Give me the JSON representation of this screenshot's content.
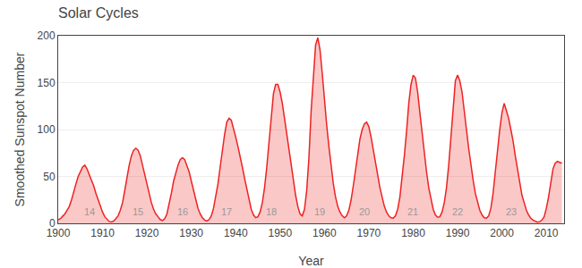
{
  "chart_data": {
    "type": "area",
    "title": "Solar Cycles",
    "xlabel": "Year",
    "ylabel": "Smoothed Sunspot Number",
    "xlim": [
      1900,
      2014
    ],
    "ylim": [
      0,
      200
    ],
    "xticks": [
      1900,
      1910,
      1920,
      1930,
      1940,
      1950,
      1960,
      1970,
      1980,
      1990,
      2000,
      2010
    ],
    "yticks": [
      0,
      50,
      100,
      150,
      200
    ],
    "grid": "y",
    "color": "#EE2222",
    "annotations": [
      {
        "text": "14",
        "x": 1907,
        "y": 5
      },
      {
        "text": "15",
        "x": 1918,
        "y": 5
      },
      {
        "text": "16",
        "x": 1928,
        "y": 5
      },
      {
        "text": "17",
        "x": 1938,
        "y": 5
      },
      {
        "text": "18",
        "x": 1948,
        "y": 5
      },
      {
        "text": "19",
        "x": 1959,
        "y": 5
      },
      {
        "text": "20",
        "x": 1969,
        "y": 5
      },
      {
        "text": "21",
        "x": 1980,
        "y": 5
      },
      {
        "text": "22",
        "x": 1990,
        "y": 5
      },
      {
        "text": "23",
        "x": 2002,
        "y": 5
      }
    ],
    "x": [
      1900.0,
      1900.5,
      1901.0,
      1901.5,
      1902.0,
      1902.5,
      1903.0,
      1903.5,
      1904.0,
      1904.5,
      1905.0,
      1905.5,
      1906.0,
      1906.5,
      1907.0,
      1907.5,
      1908.0,
      1908.5,
      1909.0,
      1909.5,
      1910.0,
      1910.5,
      1911.0,
      1911.5,
      1912.0,
      1912.5,
      1913.0,
      1913.5,
      1914.0,
      1914.5,
      1915.0,
      1915.5,
      1916.0,
      1916.5,
      1917.0,
      1917.5,
      1918.0,
      1918.5,
      1919.0,
      1919.5,
      1920.0,
      1920.5,
      1921.0,
      1921.5,
      1922.0,
      1922.5,
      1923.0,
      1923.5,
      1924.0,
      1924.5,
      1925.0,
      1925.5,
      1926.0,
      1926.5,
      1927.0,
      1927.5,
      1928.0,
      1928.5,
      1929.0,
      1929.5,
      1930.0,
      1930.5,
      1931.0,
      1931.5,
      1932.0,
      1932.5,
      1933.0,
      1933.5,
      1934.0,
      1934.5,
      1935.0,
      1935.5,
      1936.0,
      1936.5,
      1937.0,
      1937.5,
      1938.0,
      1938.5,
      1939.0,
      1939.5,
      1940.0,
      1940.5,
      1941.0,
      1941.5,
      1942.0,
      1942.5,
      1943.0,
      1943.5,
      1944.0,
      1944.5,
      1945.0,
      1945.5,
      1946.0,
      1946.5,
      1947.0,
      1947.5,
      1948.0,
      1948.5,
      1949.0,
      1949.5,
      1950.0,
      1950.5,
      1951.0,
      1951.5,
      1952.0,
      1952.5,
      1953.0,
      1953.5,
      1954.0,
      1954.5,
      1955.0,
      1955.5,
      1956.0,
      1956.5,
      1957.0,
      1957.5,
      1958.0,
      1958.5,
      1959.0,
      1959.5,
      1960.0,
      1960.5,
      1961.0,
      1961.5,
      1962.0,
      1962.5,
      1963.0,
      1963.5,
      1964.0,
      1964.5,
      1965.0,
      1965.5,
      1966.0,
      1966.5,
      1967.0,
      1967.5,
      1968.0,
      1968.5,
      1969.0,
      1969.5,
      1970.0,
      1970.5,
      1971.0,
      1971.5,
      1972.0,
      1972.5,
      1973.0,
      1973.5,
      1974.0,
      1974.5,
      1975.0,
      1975.5,
      1976.0,
      1976.5,
      1977.0,
      1977.5,
      1978.0,
      1978.5,
      1979.0,
      1979.5,
      1980.0,
      1980.5,
      1981.0,
      1981.5,
      1982.0,
      1982.5,
      1983.0,
      1983.5,
      1984.0,
      1984.5,
      1985.0,
      1985.5,
      1986.0,
      1986.5,
      1987.0,
      1987.5,
      1988.0,
      1988.5,
      1989.0,
      1989.5,
      1990.0,
      1990.5,
      1991.0,
      1991.5,
      1992.0,
      1992.5,
      1993.0,
      1993.5,
      1994.0,
      1994.5,
      1995.0,
      1995.5,
      1996.0,
      1996.5,
      1997.0,
      1997.5,
      1998.0,
      1998.5,
      1999.0,
      1999.5,
      2000.0,
      2000.5,
      2001.0,
      2001.5,
      2002.0,
      2002.5,
      2003.0,
      2003.5,
      2004.0,
      2004.5,
      2005.0,
      2005.5,
      2006.0,
      2006.5,
      2007.0,
      2007.5,
      2008.0,
      2008.5,
      2009.0,
      2009.5,
      2010.0,
      2010.5,
      2011.0,
      2011.5,
      2012.0,
      2012.5,
      2013.0,
      2013.5
    ],
    "values": [
      3.8,
      5.0,
      7.5,
      10.0,
      14.0,
      18.0,
      25.0,
      35.0,
      42.0,
      50.0,
      55.0,
      60.0,
      62.0,
      58.0,
      52.0,
      46.0,
      40.0,
      32.0,
      25.0,
      18.0,
      12.0,
      7.0,
      4.0,
      2.0,
      1.5,
      2.5,
      5.0,
      8.0,
      14.0,
      22.0,
      35.0,
      50.0,
      62.0,
      72.0,
      78.0,
      80.0,
      78.0,
      72.0,
      62.0,
      50.0,
      40.0,
      32.0,
      22.0,
      15.0,
      10.0,
      7.0,
      4.0,
      3.0,
      5.0,
      10.0,
      20.0,
      32.0,
      45.0,
      55.0,
      62.0,
      68.0,
      70.0,
      68.0,
      62.0,
      55.0,
      45.0,
      35.0,
      25.0,
      16.0,
      10.0,
      6.0,
      3.5,
      2.5,
      4.0,
      8.0,
      16.0,
      28.0,
      42.0,
      60.0,
      78.0,
      95.0,
      108.0,
      112.0,
      110.0,
      102.0,
      92.0,
      82.0,
      72.0,
      60.0,
      48.0,
      36.0,
      25.0,
      15.0,
      9.0,
      6.0,
      7.0,
      12.0,
      22.0,
      38.0,
      60.0,
      88.0,
      118.0,
      138.0,
      148.0,
      148.0,
      140.0,
      128.0,
      112.0,
      95.0,
      78.0,
      60.0,
      44.0,
      30.0,
      18.0,
      10.0,
      8.0,
      15.0,
      35.0,
      70.0,
      120.0,
      160.0,
      190.0,
      198.0,
      185.0,
      160.0,
      130.0,
      105.0,
      82.0,
      60.0,
      42.0,
      28.0,
      18.0,
      12.0,
      8.0,
      6.0,
      8.0,
      14.0,
      25.0,
      40.0,
      58.0,
      75.0,
      90.0,
      100.0,
      106.0,
      108.0,
      103.0,
      92.0,
      78.0,
      62.0,
      50.0,
      38.0,
      28.0,
      18.0,
      12.0,
      8.0,
      6.0,
      5.5,
      8.0,
      15.0,
      28.0,
      48.0,
      72.0,
      98.0,
      128.0,
      148.0,
      158.0,
      155.0,
      140.0,
      118.0,
      95.0,
      75.0,
      55.0,
      38.0,
      25.0,
      15.0,
      9.0,
      6.5,
      7.0,
      12.0,
      22.0,
      38.0,
      62.0,
      92.0,
      128.0,
      152.0,
      158.0,
      152.0,
      140.0,
      122.0,
      100.0,
      80.0,
      62.0,
      46.0,
      32.0,
      22.0,
      14.0,
      9.0,
      6.0,
      5.5,
      8.0,
      16.0,
      32.0,
      55.0,
      80.0,
      100.0,
      118.0,
      128.0,
      120.0,
      112.0,
      100.0,
      88.0,
      72.0,
      58.0,
      42.0,
      30.0,
      22.0,
      14.0,
      9.0,
      5.5,
      3.5,
      2.0,
      1.2,
      1.8,
      3.5,
      7.0,
      16.0,
      28.0,
      45.0,
      58.0,
      64.0,
      66.0,
      65.0,
      64.0
    ]
  }
}
